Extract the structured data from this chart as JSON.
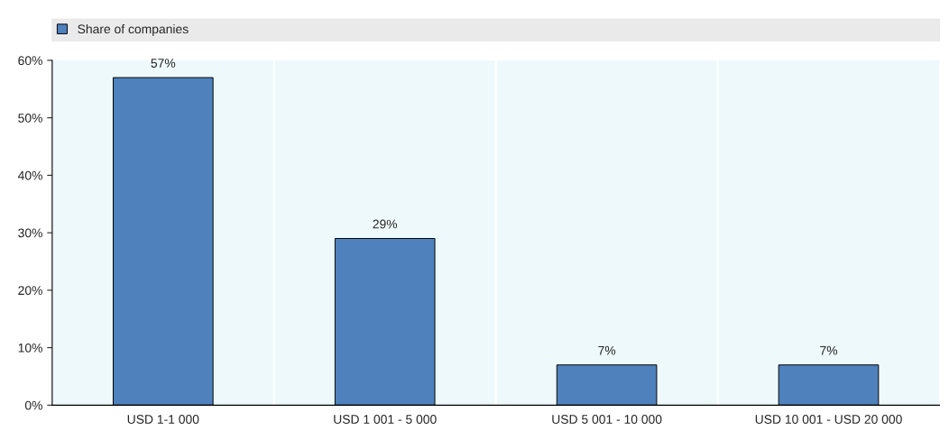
{
  "chart_data": {
    "type": "bar",
    "categories": [
      "USD 1-1 000",
      "USD 1 001 - 5 000",
      "USD 5 001 - 10 000",
      "USD 10 001 - USD 20 000"
    ],
    "series": [
      {
        "name": "Share of companies",
        "color": "#4f81bd",
        "values": [
          57,
          29,
          7,
          7
        ],
        "value_labels": [
          "57%",
          "29%",
          "7%",
          "7%"
        ]
      }
    ],
    "ylim": [
      0,
      60
    ],
    "yticks": [
      {
        "value": 0,
        "label": "0%"
      },
      {
        "value": 10,
        "label": "10%"
      },
      {
        "value": 20,
        "label": "20%"
      },
      {
        "value": 30,
        "label": "30%"
      },
      {
        "value": 40,
        "label": "40%"
      },
      {
        "value": 50,
        "label": "50%"
      },
      {
        "value": 60,
        "label": "60%"
      }
    ],
    "legend": "top",
    "grid": false
  }
}
